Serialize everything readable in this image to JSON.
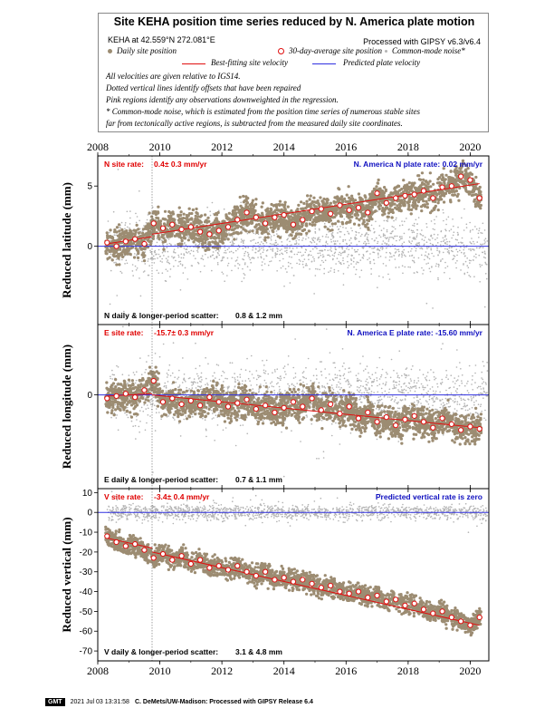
{
  "header": {
    "title": "Site KEHA position time series reduced by N. America plate motion",
    "location": "KEHA at 42.559°N 272.081°E",
    "processed": "Processed with GIPSY v6.3/v6.4",
    "legend_daily": "Daily site position",
    "legend_30day": "30-day-average site position",
    "legend_cm": "Common-mode noise*",
    "legend_best": "Best-fitting site velocity",
    "legend_pred": "Predicted plate velocity",
    "note1": "All velocities are given relative to IGS14.",
    "note2": "Dotted vertical lines identify offsets that have been repaired",
    "note3": "Pink regions identify any observations downweighted in the regression.",
    "note4": "* Common-mode noise, which is estimated from the position time series of numerous stable sites",
    "note5": "far from tectonically active regions, is subtracted from the measured daily site coordinates."
  },
  "footer": {
    "logo": "GMT",
    "timestamp": "2021 Jul 03 13:31:58",
    "credit": "C. DeMets/UW-Madison: Processed with GIPSY Release 6.4"
  },
  "colors": {
    "daily": "#9c8c72",
    "common_mode": "#b4b4b4",
    "fit": "#e01010",
    "plate": "#3030e0",
    "label_red": "#e00000",
    "label_blue": "#1010c0"
  },
  "chart_data": [
    {
      "type": "scatter",
      "panel": "north",
      "ylabel": "Reduced latitude (mm)",
      "xlim": [
        2008,
        2020.6
      ],
      "ylim": [
        -6.5,
        7.5
      ],
      "x_ticks": [
        2008,
        2010,
        2012,
        2014,
        2016,
        2018,
        2020
      ],
      "y_ticks": [
        0,
        5
      ],
      "site_rate_label": "N site rate:",
      "site_rate_value": "0.4± 0.3 mm/yr",
      "plate_rate_label": "N. America N plate rate: 0.02 mm/yr",
      "scatter_label": "N daily & longer-period scatter:",
      "scatter_value": "0.8 &   1.2 mm",
      "offset_year": 2009.75,
      "fit_segments": [
        {
          "x": [
            2008.3,
            2009.75
          ],
          "y": [
            0.2,
            0.8
          ]
        },
        {
          "x": [
            2009.75,
            2020.3
          ],
          "y": [
            1.0,
            5.2
          ]
        }
      ],
      "avg_series": [
        [
          2008.3,
          0.3
        ],
        [
          2008.6,
          0.0
        ],
        [
          2008.9,
          0.4
        ],
        [
          2009.2,
          0.6
        ],
        [
          2009.5,
          0.2
        ],
        [
          2009.8,
          1.9
        ],
        [
          2010.1,
          1.5
        ],
        [
          2010.4,
          1.8
        ],
        [
          2010.7,
          1.4
        ],
        [
          2011.0,
          1.6
        ],
        [
          2011.3,
          1.2
        ],
        [
          2011.6,
          1.0
        ],
        [
          2011.9,
          1.3
        ],
        [
          2012.2,
          1.6
        ],
        [
          2012.5,
          2.2
        ],
        [
          2012.8,
          2.8
        ],
        [
          2013.1,
          2.4
        ],
        [
          2013.4,
          1.9
        ],
        [
          2013.7,
          2.4
        ],
        [
          2014.0,
          2.6
        ],
        [
          2014.3,
          1.8
        ],
        [
          2014.6,
          2.2
        ],
        [
          2014.9,
          2.9
        ],
        [
          2015.2,
          3.1
        ],
        [
          2015.5,
          2.7
        ],
        [
          2015.8,
          3.4
        ],
        [
          2016.1,
          3.0
        ],
        [
          2016.4,
          3.2
        ],
        [
          2016.7,
          2.8
        ],
        [
          2017.0,
          4.4
        ],
        [
          2017.3,
          3.6
        ],
        [
          2017.6,
          4.0
        ],
        [
          2017.9,
          4.2
        ],
        [
          2018.2,
          4.3
        ],
        [
          2018.5,
          4.6
        ],
        [
          2018.8,
          4.0
        ],
        [
          2019.1,
          4.9
        ],
        [
          2019.4,
          5.0
        ],
        [
          2019.7,
          5.8
        ],
        [
          2020.0,
          5.5
        ],
        [
          2020.3,
          4.0
        ]
      ]
    },
    {
      "type": "scatter",
      "panel": "east",
      "ylabel": "Reduced longitude (mm)",
      "xlim": [
        2008,
        2020.6
      ],
      "ylim": [
        -8,
        6
      ],
      "x_ticks": [
        2008,
        2010,
        2012,
        2014,
        2016,
        2018,
        2020
      ],
      "y_ticks": [
        0
      ],
      "site_rate_label": "E site rate:",
      "site_rate_value": "-15.7± 0.3 mm/yr",
      "plate_rate_label": "N. America E plate rate: -15.60 mm/yr",
      "scatter_label": "E daily & longer-period scatter:",
      "scatter_value": "0.7 &   1.1 mm",
      "offset_year": 2009.75,
      "fit_segments": [
        {
          "x": [
            2008.3,
            2009.75
          ],
          "y": [
            -0.1,
            0.1
          ]
        },
        {
          "x": [
            2009.75,
            2020.3
          ],
          "y": [
            0.0,
            -2.8
          ]
        }
      ],
      "avg_series": [
        [
          2008.3,
          -0.3
        ],
        [
          2008.6,
          -0.1
        ],
        [
          2008.9,
          0.1
        ],
        [
          2009.2,
          -0.2
        ],
        [
          2009.5,
          0.4
        ],
        [
          2009.8,
          1.2
        ],
        [
          2010.1,
          -0.6
        ],
        [
          2010.4,
          -0.3
        ],
        [
          2010.7,
          -0.8
        ],
        [
          2011.0,
          -0.5
        ],
        [
          2011.3,
          -0.9
        ],
        [
          2011.6,
          -0.2
        ],
        [
          2011.9,
          -0.6
        ],
        [
          2012.2,
          -1.0
        ],
        [
          2012.5,
          -0.7
        ],
        [
          2012.8,
          -0.4
        ],
        [
          2013.1,
          -1.2
        ],
        [
          2013.4,
          -0.9
        ],
        [
          2013.7,
          -1.5
        ],
        [
          2014.0,
          -1.1
        ],
        [
          2014.3,
          -0.6
        ],
        [
          2014.6,
          -1.0
        ],
        [
          2014.9,
          -0.3
        ],
        [
          2015.2,
          -1.3
        ],
        [
          2015.5,
          -0.8
        ],
        [
          2015.8,
          -1.6
        ],
        [
          2016.1,
          -1.0
        ],
        [
          2016.4,
          -2.0
        ],
        [
          2016.7,
          -1.5
        ],
        [
          2017.0,
          -2.3
        ],
        [
          2017.3,
          -1.9
        ],
        [
          2017.6,
          -2.6
        ],
        [
          2017.9,
          -2.1
        ],
        [
          2018.2,
          -1.8
        ],
        [
          2018.5,
          -2.3
        ],
        [
          2018.8,
          -2.8
        ],
        [
          2019.1,
          -2.0
        ],
        [
          2019.4,
          -2.5
        ],
        [
          2019.7,
          -3.0
        ],
        [
          2020.0,
          -2.7
        ],
        [
          2020.3,
          -2.9
        ]
      ]
    },
    {
      "type": "scatter",
      "panel": "vertical",
      "ylabel": "Reduced vertical (mm)",
      "xlim": [
        2008,
        2020.6
      ],
      "ylim": [
        -75,
        12
      ],
      "x_ticks": [
        2008,
        2010,
        2012,
        2014,
        2016,
        2018,
        2020
      ],
      "y_ticks": [
        10,
        0,
        -10,
        -20,
        -30,
        -40,
        -50,
        -60,
        -70
      ],
      "site_rate_label": "V site rate:",
      "site_rate_value": "-3.4± 0.4 mm/yr",
      "plate_rate_label": "Predicted vertical rate is zero",
      "scatter_label": "V daily & longer-period scatter:",
      "scatter_value": "3.1 &   4.8 mm",
      "offset_year": 2009.75,
      "fit_segments": [
        {
          "x": [
            2008.3,
            2009.75
          ],
          "y": [
            -13,
            -18
          ]
        },
        {
          "x": [
            2009.75,
            2020.3
          ],
          "y": [
            -20,
            -57
          ]
        }
      ],
      "avg_series": [
        [
          2008.3,
          -12
        ],
        [
          2008.6,
          -15
        ],
        [
          2008.9,
          -17
        ],
        [
          2009.2,
          -16
        ],
        [
          2009.5,
          -19
        ],
        [
          2009.8,
          -23
        ],
        [
          2010.1,
          -21
        ],
        [
          2010.4,
          -24
        ],
        [
          2010.7,
          -22
        ],
        [
          2011.0,
          -26
        ],
        [
          2011.3,
          -24
        ],
        [
          2011.6,
          -28
        ],
        [
          2011.9,
          -27
        ],
        [
          2012.2,
          -29
        ],
        [
          2012.5,
          -27
        ],
        [
          2012.8,
          -30
        ],
        [
          2013.1,
          -32
        ],
        [
          2013.4,
          -30
        ],
        [
          2013.7,
          -34
        ],
        [
          2014.0,
          -33
        ],
        [
          2014.3,
          -35
        ],
        [
          2014.6,
          -34
        ],
        [
          2014.9,
          -36
        ],
        [
          2015.2,
          -38
        ],
        [
          2015.5,
          -37
        ],
        [
          2015.8,
          -40
        ],
        [
          2016.1,
          -41
        ],
        [
          2016.4,
          -40
        ],
        [
          2016.7,
          -43
        ],
        [
          2017.0,
          -42
        ],
        [
          2017.3,
          -45
        ],
        [
          2017.6,
          -44
        ],
        [
          2017.9,
          -47
        ],
        [
          2018.2,
          -46
        ],
        [
          2018.5,
          -49
        ],
        [
          2018.8,
          -51
        ],
        [
          2019.1,
          -50
        ],
        [
          2019.4,
          -53
        ],
        [
          2019.7,
          -55
        ],
        [
          2020.0,
          -57
        ],
        [
          2020.3,
          -53
        ]
      ]
    }
  ]
}
